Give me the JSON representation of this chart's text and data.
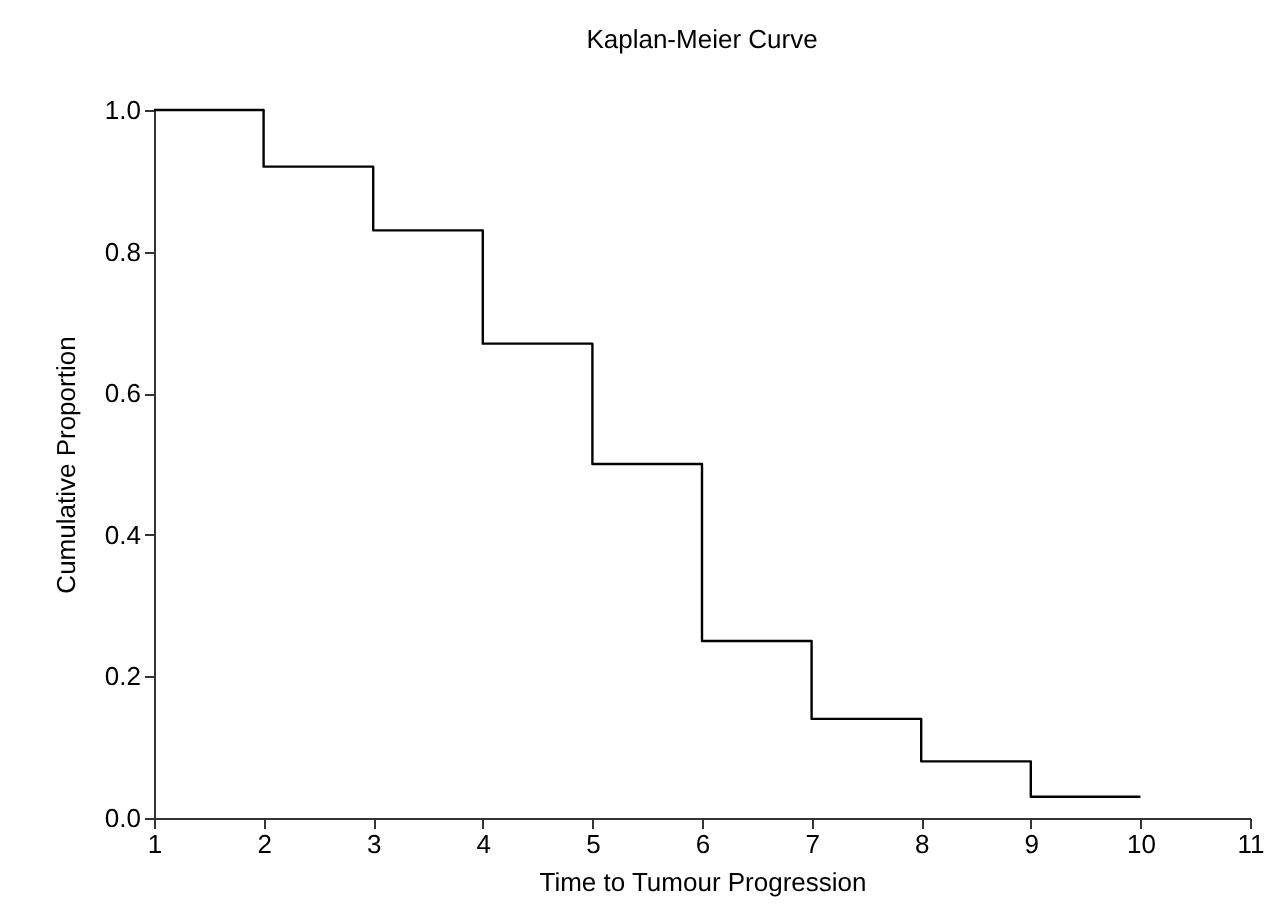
{
  "chart_data": {
    "type": "step",
    "title": "Kaplan-Meier Curve",
    "xlabel": "Time to Tumour Progression",
    "ylabel": "Cumulative Proportion",
    "x": [
      1,
      2,
      3,
      4,
      5,
      6,
      7,
      8,
      9,
      10
    ],
    "series": [
      {
        "color": "#000000",
        "values": [
          1,
          0.92,
          0.83,
          0.67,
          0.5,
          0.25,
          0.14,
          0.08,
          0.03,
          0.03
        ]
      }
    ],
    "xlim": [
      1,
      11
    ],
    "xticks": [
      1,
      2,
      3,
      4,
      5,
      6,
      7,
      8,
      9,
      10,
      11
    ],
    "ylim": [
      0,
      1
    ],
    "yticks": [
      {
        "value": 0,
        "label": "0.0"
      },
      {
        "value": 0.2,
        "label": "0.2"
      },
      {
        "value": 0.4,
        "label": "0.4"
      },
      {
        "value": 0.6,
        "label": "0.6"
      },
      {
        "value": 0.8,
        "label": "0.8"
      },
      {
        "value": 1,
        "label": "1.0"
      }
    ],
    "grid": false
  }
}
